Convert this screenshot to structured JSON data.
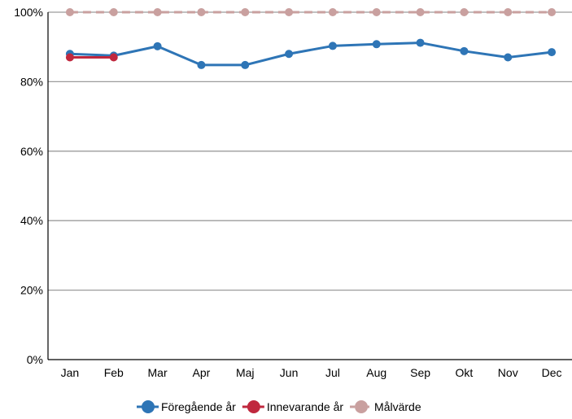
{
  "chart_data": {
    "type": "line",
    "categories": [
      "Jan",
      "Feb",
      "Mar",
      "Apr",
      "Maj",
      "Jun",
      "Jul",
      "Aug",
      "Sep",
      "Okt",
      "Nov",
      "Dec"
    ],
    "ylim": [
      0,
      100
    ],
    "yticks": [
      "0%",
      "20%",
      "40%",
      "60%",
      "80%",
      "100%"
    ],
    "grid": true,
    "legend_position": "bottom",
    "series": [
      {
        "name": "Föregående år",
        "color": "#2E75B6",
        "dashed": false,
        "values": [
          88,
          87.5,
          90.2,
          84.8,
          84.8,
          88,
          90.3,
          90.8,
          91.2,
          88.8,
          87,
          88.5
        ]
      },
      {
        "name": "Innevarande år",
        "color": "#C0283E",
        "dashed": false,
        "values": [
          87,
          87,
          null,
          null,
          null,
          null,
          null,
          null,
          null,
          null,
          null,
          null
        ]
      },
      {
        "name": "Målvärde",
        "color": "#C9A09F",
        "dashed": true,
        "values": [
          100,
          100,
          100,
          100,
          100,
          100,
          100,
          100,
          100,
          100,
          100,
          100
        ]
      }
    ]
  }
}
